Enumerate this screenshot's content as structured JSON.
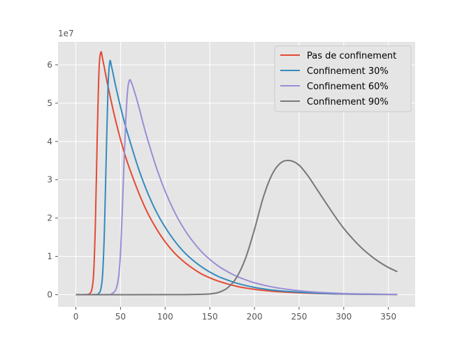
{
  "chart_data": {
    "type": "line",
    "title": "",
    "xlabel": "",
    "ylabel": "",
    "y_multiplier_label": "1e7",
    "y_multiplier": 10000000,
    "xlim": [
      -20,
      380
    ],
    "ylim": [
      -0.32,
      6.6
    ],
    "xticks": [
      0,
      50,
      100,
      150,
      200,
      250,
      300,
      350
    ],
    "yticks": [
      0,
      1,
      2,
      3,
      4,
      5,
      6
    ],
    "grid": true,
    "legend_position": "top-right",
    "background_color": "#e5e5e5",
    "series": [
      {
        "name": "Pas de confinement",
        "color": "#e24a33",
        "x": [
          0,
          10,
          15,
          18,
          20,
          22,
          24,
          26,
          28,
          30,
          35,
          40,
          45,
          50,
          55,
          60,
          70,
          80,
          90,
          100,
          110,
          120,
          130,
          140,
          150,
          160,
          170,
          180,
          190,
          200,
          220,
          240,
          260,
          280,
          300,
          320,
          340,
          360
        ],
        "y": [
          0,
          0,
          0.02,
          0.15,
          0.6,
          2.0,
          4.2,
          5.9,
          6.33,
          6.15,
          5.55,
          5.0,
          4.5,
          4.05,
          3.65,
          3.3,
          2.68,
          2.15,
          1.73,
          1.38,
          1.1,
          0.88,
          0.7,
          0.55,
          0.44,
          0.35,
          0.28,
          0.22,
          0.175,
          0.14,
          0.09,
          0.06,
          0.04,
          0.025,
          0.016,
          0.01,
          0.006,
          0.004
        ]
      },
      {
        "name": "Confinement 30%",
        "color": "#348abd",
        "x": [
          0,
          20,
          25,
          28,
          30,
          32,
          34,
          36,
          38,
          40,
          45,
          50,
          55,
          60,
          70,
          80,
          90,
          100,
          110,
          120,
          130,
          140,
          150,
          160,
          170,
          180,
          190,
          200,
          220,
          240,
          260,
          280,
          300,
          320,
          340,
          360
        ],
        "y": [
          0,
          0,
          0.02,
          0.15,
          0.55,
          1.7,
          3.6,
          5.4,
          6.08,
          5.95,
          5.4,
          4.9,
          4.45,
          4.05,
          3.3,
          2.68,
          2.17,
          1.76,
          1.42,
          1.14,
          0.92,
          0.74,
          0.59,
          0.47,
          0.38,
          0.3,
          0.24,
          0.19,
          0.12,
          0.08,
          0.05,
          0.03,
          0.02,
          0.013,
          0.008,
          0.005
        ]
      },
      {
        "name": "Confinement 60%",
        "color": "#988ed5",
        "x": [
          0,
          35,
          40,
          45,
          48,
          50,
          52,
          54,
          56,
          58,
          60,
          62,
          65,
          70,
          75,
          80,
          90,
          100,
          110,
          120,
          130,
          140,
          150,
          160,
          170,
          180,
          190,
          200,
          220,
          240,
          260,
          280,
          300,
          320,
          340,
          360
        ],
        "y": [
          0,
          0,
          0.02,
          0.15,
          0.5,
          1.1,
          2.2,
          3.5,
          4.6,
          5.35,
          5.6,
          5.55,
          5.35,
          4.95,
          4.5,
          4.08,
          3.33,
          2.7,
          2.18,
          1.76,
          1.42,
          1.14,
          0.92,
          0.74,
          0.6,
          0.48,
          0.39,
          0.31,
          0.2,
          0.13,
          0.08,
          0.05,
          0.03,
          0.02,
          0.013,
          0.008
        ]
      },
      {
        "name": "Confinement 90%",
        "color": "#777777",
        "x": [
          0,
          100,
          130,
          150,
          160,
          170,
          180,
          190,
          200,
          210,
          220,
          230,
          240,
          250,
          260,
          270,
          280,
          290,
          300,
          310,
          320,
          330,
          340,
          350,
          360
        ],
        "y": [
          0,
          0,
          0.005,
          0.02,
          0.06,
          0.18,
          0.45,
          0.95,
          1.7,
          2.55,
          3.15,
          3.45,
          3.5,
          3.38,
          3.1,
          2.75,
          2.4,
          2.05,
          1.73,
          1.46,
          1.22,
          1.02,
          0.85,
          0.71,
          0.6
        ]
      }
    ]
  }
}
